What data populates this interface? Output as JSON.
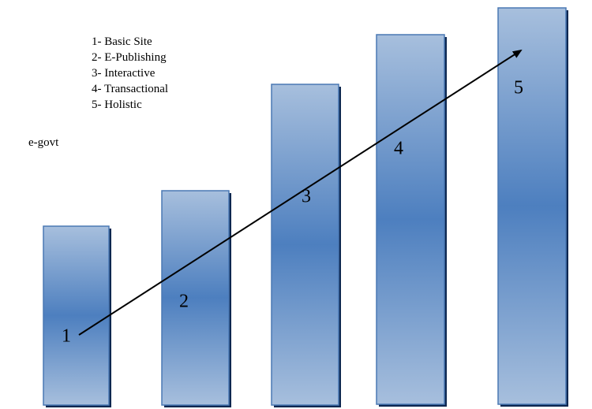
{
  "legend": [
    "1- Basic Site",
    "2- E-Publishing",
    "3- Interactive",
    "4- Transactional",
    "5- Holistic"
  ],
  "side_label": "e-govt",
  "stages": [
    {
      "label": "1",
      "level": 1
    },
    {
      "label": "2",
      "level": 2
    },
    {
      "label": "3",
      "level": 3
    },
    {
      "label": "4",
      "level": 4
    },
    {
      "label": "5",
      "level": 5
    }
  ],
  "colors": {
    "bar_light": "#a7bfdd",
    "bar_mid": "#4d7fbf",
    "bar_border": "#4a78b4",
    "bar_shadow": "#0d2750",
    "arrow": "#000000"
  }
}
